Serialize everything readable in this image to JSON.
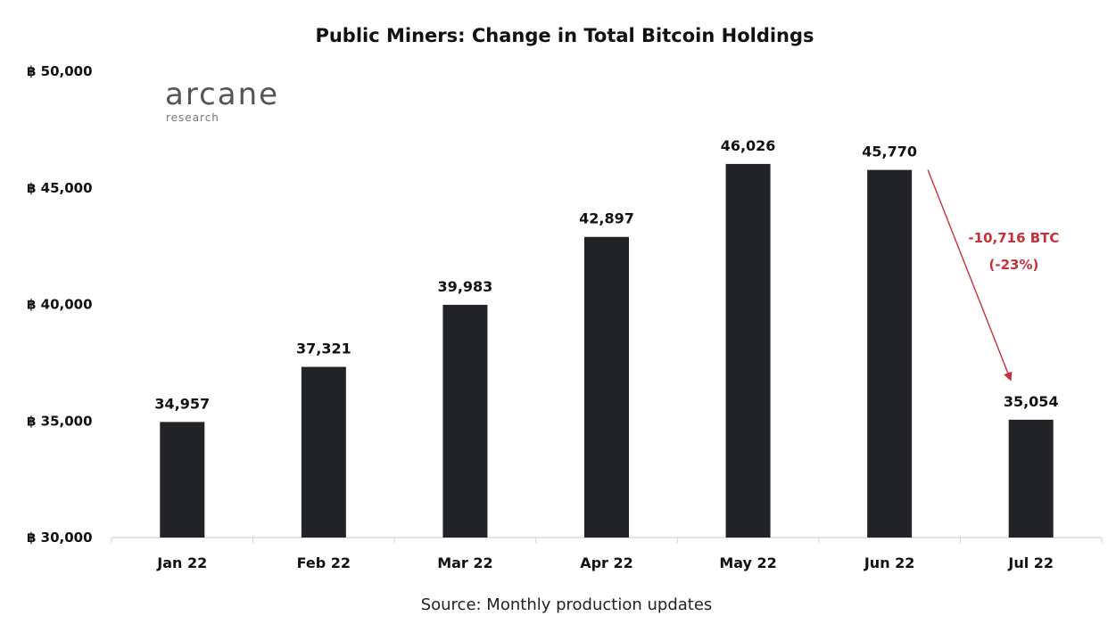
{
  "chart_data": {
    "type": "bar",
    "title": "Public Miners: Change in Total Bitcoin Holdings",
    "categories": [
      "Jan 22",
      "Feb 22",
      "Mar 22",
      "Apr 22",
      "May 22",
      "Jun 22",
      "Jul 22"
    ],
    "values": [
      34957,
      37321,
      39983,
      42897,
      46026,
      45770,
      35054
    ],
    "value_labels": [
      "34,957",
      "37,321",
      "39,983",
      "42,897",
      "46,026",
      "45,770",
      "35,054"
    ],
    "ylim": [
      30000,
      50000
    ],
    "yticks": [
      30000,
      35000,
      40000,
      45000,
      50000
    ],
    "ytick_labels": [
      "฿ 30,000",
      "฿ 35,000",
      "฿ 40,000",
      "฿ 45,000",
      "฿ 50,000"
    ],
    "xlabel": "",
    "ylabel": "",
    "grid": false,
    "bar_color": "#212327",
    "annotation": {
      "from_category": "Jun 22",
      "to_category": "Jul 22",
      "line1": "-10,716 BTC",
      "line2": "(-23%)",
      "color": "#c8303a"
    }
  },
  "logo": {
    "name": "arcane",
    "sub": "research"
  },
  "source": "Source: Monthly production updates"
}
